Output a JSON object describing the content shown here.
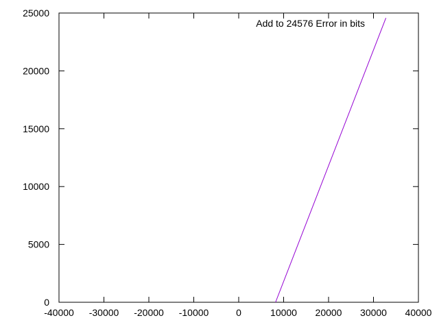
{
  "chart_data": {
    "type": "line",
    "title": "",
    "xlabel": "",
    "ylabel": "",
    "xlim": [
      -40000,
      40000
    ],
    "ylim": [
      0,
      25000
    ],
    "x_ticks": [
      -40000,
      -30000,
      -20000,
      -10000,
      0,
      10000,
      20000,
      30000,
      40000
    ],
    "y_ticks": [
      0,
      5000,
      10000,
      15000,
      20000,
      25000
    ],
    "x_tick_labels": [
      "-40000",
      "-30000",
      "-20000",
      "-10000",
      "0",
      "10000",
      "20000",
      "30000",
      "40000"
    ],
    "y_tick_labels": [
      "0",
      "5000",
      "10000",
      "15000",
      "20000",
      "25000"
    ],
    "grid": false,
    "legend_position": "top-right",
    "series": [
      {
        "name": "Add to 24576 Error in bits",
        "color": "#9400d3",
        "x": [
          8192,
          32767
        ],
        "y": [
          0,
          24575
        ]
      }
    ]
  }
}
